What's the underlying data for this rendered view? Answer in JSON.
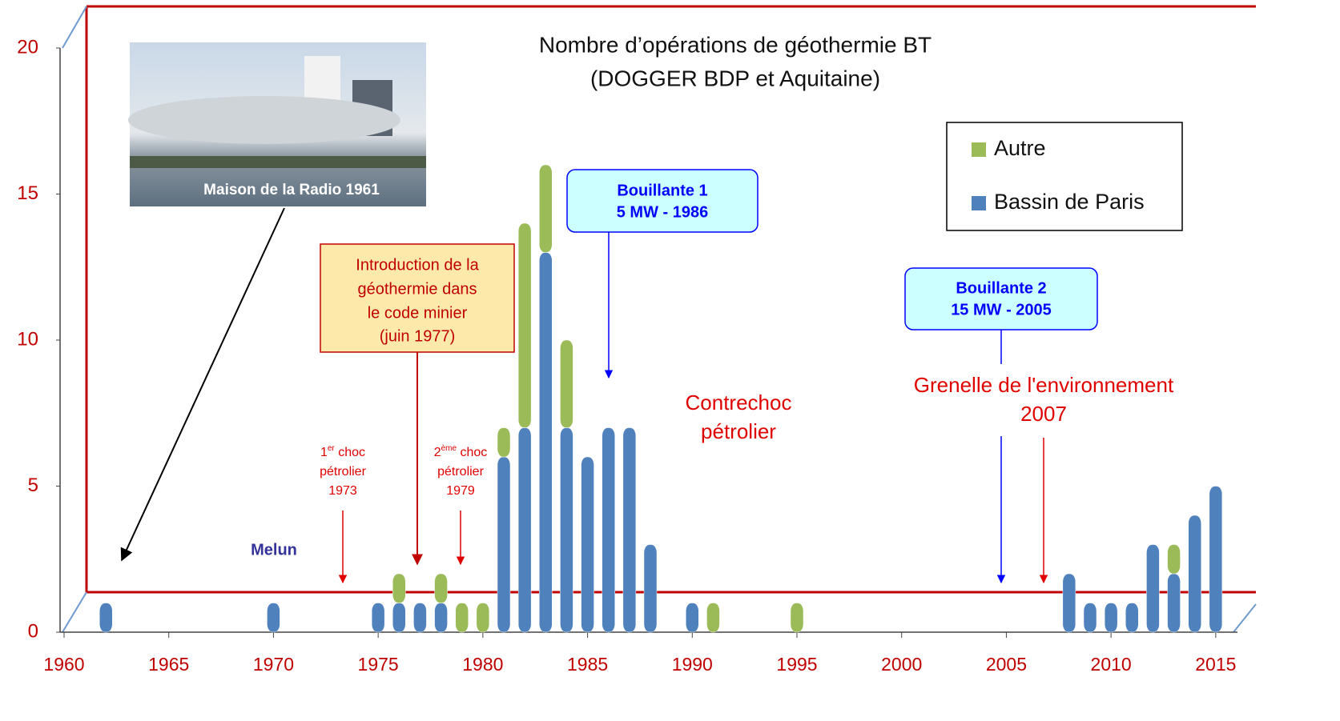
{
  "chart_data": {
    "type": "stacked_bar",
    "title": [
      "Nombre d’opérations de géothermie BT",
      "(DOGGER BDP et Aquitaine)"
    ],
    "x": [
      1962,
      1970,
      1975,
      1976,
      1977,
      1978,
      1979,
      1980,
      1981,
      1982,
      1983,
      1984,
      1985,
      1986,
      1987,
      1988,
      1990,
      1991,
      1995,
      2008,
      2009,
      2010,
      2011,
      2012,
      2013,
      2014,
      2015
    ],
    "series": [
      {
        "name": "Bassin de Paris",
        "color": "#4f81bd",
        "values": [
          1,
          1,
          1,
          1,
          1,
          1,
          0,
          0,
          6,
          7,
          13,
          7,
          6,
          7,
          7,
          3,
          1,
          0,
          0,
          2,
          1,
          1,
          1,
          3,
          2,
          4,
          5
        ]
      },
      {
        "name": "Autre",
        "color": "#9bbb59",
        "values": [
          0,
          0,
          0,
          1,
          0,
          1,
          1,
          1,
          1,
          7,
          3,
          3,
          0,
          0,
          0,
          0,
          0,
          1,
          1,
          0,
          0,
          0,
          0,
          0,
          1,
          0,
          0
        ]
      }
    ],
    "xlim": [
      1960,
      2016
    ],
    "xticks": [
      1960,
      1965,
      1970,
      1975,
      1980,
      1985,
      1990,
      1995,
      2000,
      2005,
      2010,
      2015
    ],
    "ylim": [
      0,
      20
    ],
    "yticks": [
      0,
      5,
      10,
      15,
      20
    ],
    "legend": "upper right",
    "photo_caption": "Maison de la Radio 1961",
    "annotations": {
      "melun": "Melun",
      "choc1": {
        "base": "1",
        "sup": "er",
        "rest": " choc",
        "lines": [
          "pétrolier",
          "1973"
        ]
      },
      "choc2": {
        "base": "2",
        "sup": "ème",
        "rest": " choc",
        "lines": [
          "pétrolier",
          "1979"
        ]
      },
      "code_minier": [
        "Introduction de la",
        "géothermie dans",
        "le code minier",
        "(juin 1977)"
      ],
      "bouillante1": [
        "Bouillante 1",
        "5 MW - 1986"
      ],
      "bouillante2": [
        "Bouillante 2",
        "15 MW - 2005"
      ],
      "contrechoc": [
        "Contrechoc",
        "pétrolier"
      ],
      "grenelle": [
        "Grenelle de l'environnement",
        "2007"
      ]
    }
  }
}
